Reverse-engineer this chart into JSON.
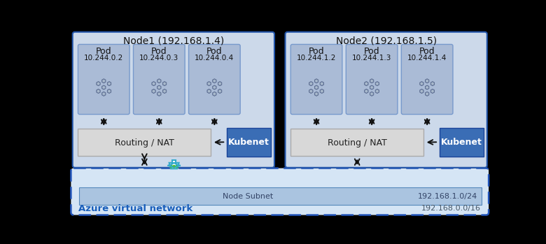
{
  "fig_width": 7.8,
  "fig_height": 3.49,
  "bg_color": "#000000",
  "node1_label": "Node1 (192.168.1.4)",
  "node2_label": "Node2 (192.168.1.5)",
  "node_box_color": "#ccd9ea",
  "node_box_edge": "#2255aa",
  "pod_box_color": "#aabbd6",
  "pod_box_edge": "#7799cc",
  "routing_box_color": "#d8d8d8",
  "routing_box_edge": "#aaaaaa",
  "kubenet_box_color": "#3a6db5",
  "kubenet_text_color": "#ffffff",
  "vnet_box_color": "#d5e5f5",
  "vnet_box_edge": "#2255bb",
  "subnet_box_color": "#aac4e0",
  "subnet_box_edge": "#5588bb",
  "azure_vnet_label": "Azure virtual network",
  "azure_vnet_color": "#1a5fbb",
  "subnet_label": "Node Subnet",
  "subnet_ip": "192.168.1.0/24",
  "vnet_ip": "192.168.0.0/16",
  "node1_pods": [
    "Pod\n10.244.0.2",
    "Pod\n10.244.0.3",
    "Pod\n10.244.0.4"
  ],
  "node2_pods": [
    "Pod\n10.244.1.2",
    "Pod\n10.244.1.3",
    "Pod\n10.244.1.4"
  ],
  "routing_label": "Routing / NAT",
  "kubenet_label": "Kubenet",
  "arrow_color": "#111111",
  "white": "#ffffff",
  "cyan_arrow": "#33aacc",
  "green_dot": "#44bb44"
}
